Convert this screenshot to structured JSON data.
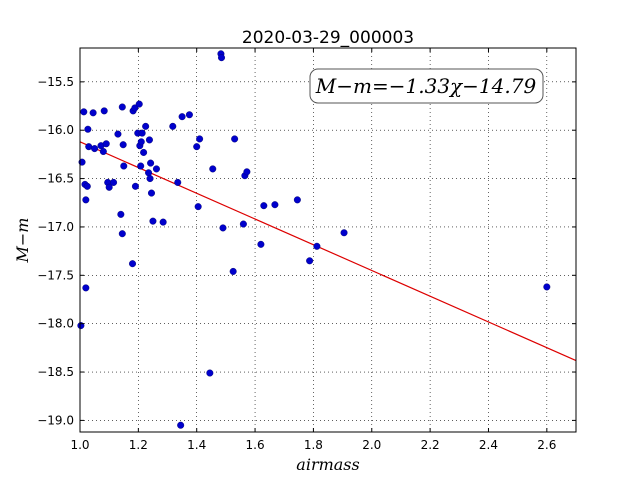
{
  "chart_data": {
    "type": "scatter",
    "title": "2020-03-29_000003",
    "xlabel": "airmass",
    "ylabel": "M−m",
    "annotation": "M−m=−1.33χ−14.79",
    "xlim": [
      1.0,
      2.7
    ],
    "ylim": [
      -19.12,
      -15.15
    ],
    "xticks": [
      1.0,
      1.2,
      1.4,
      1.6,
      1.8,
      2.0,
      2.2,
      2.4,
      2.6
    ],
    "yticks": [
      -15.5,
      -16.0,
      -16.5,
      -17.0,
      -17.5,
      -18.0,
      -18.5,
      -19.0
    ],
    "grid": true,
    "point_color": "#0000cc",
    "line_color": "#dd0000",
    "fit": {
      "slope": -1.33,
      "intercept": -14.79
    },
    "points": [
      {
        "x": 1.003,
        "y": -18.02
      },
      {
        "x": 1.007,
        "y": -16.33
      },
      {
        "x": 1.013,
        "y": -15.81
      },
      {
        "x": 1.017,
        "y": -16.56
      },
      {
        "x": 1.02,
        "y": -17.63
      },
      {
        "x": 1.02,
        "y": -16.72
      },
      {
        "x": 1.025,
        "y": -16.58
      },
      {
        "x": 1.027,
        "y": -15.99
      },
      {
        "x": 1.03,
        "y": -16.17
      },
      {
        "x": 1.045,
        "y": -15.82
      },
      {
        "x": 1.05,
        "y": -16.19
      },
      {
        "x": 1.072,
        "y": -16.16
      },
      {
        "x": 1.08,
        "y": -16.22
      },
      {
        "x": 1.083,
        "y": -15.8
      },
      {
        "x": 1.09,
        "y": -16.14
      },
      {
        "x": 1.095,
        "y": -16.54
      },
      {
        "x": 1.1,
        "y": -16.59
      },
      {
        "x": 1.115,
        "y": -16.54
      },
      {
        "x": 1.13,
        "y": -16.04
      },
      {
        "x": 1.14,
        "y": -16.87
      },
      {
        "x": 1.145,
        "y": -15.76
      },
      {
        "x": 1.145,
        "y": -17.07
      },
      {
        "x": 1.148,
        "y": -16.15
      },
      {
        "x": 1.15,
        "y": -16.37
      },
      {
        "x": 1.18,
        "y": -17.38
      },
      {
        "x": 1.182,
        "y": -15.8
      },
      {
        "x": 1.188,
        "y": -15.77
      },
      {
        "x": 1.19,
        "y": -16.58
      },
      {
        "x": 1.198,
        "y": -16.03
      },
      {
        "x": 1.203,
        "y": -15.73
      },
      {
        "x": 1.205,
        "y": -16.16
      },
      {
        "x": 1.208,
        "y": -16.37
      },
      {
        "x": 1.21,
        "y": -16.12
      },
      {
        "x": 1.213,
        "y": -16.03
      },
      {
        "x": 1.218,
        "y": -16.23
      },
      {
        "x": 1.225,
        "y": -15.96
      },
      {
        "x": 1.235,
        "y": -16.44
      },
      {
        "x": 1.238,
        "y": -16.1
      },
      {
        "x": 1.24,
        "y": -16.5
      },
      {
        "x": 1.242,
        "y": -16.34
      },
      {
        "x": 1.245,
        "y": -16.65
      },
      {
        "x": 1.25,
        "y": -16.94
      },
      {
        "x": 1.262,
        "y": -16.4
      },
      {
        "x": 1.285,
        "y": -16.95
      },
      {
        "x": 1.318,
        "y": -15.96
      },
      {
        "x": 1.335,
        "y": -16.54
      },
      {
        "x": 1.345,
        "y": -19.05
      },
      {
        "x": 1.35,
        "y": -15.86
      },
      {
        "x": 1.375,
        "y": -15.84
      },
      {
        "x": 1.4,
        "y": -16.17
      },
      {
        "x": 1.405,
        "y": -16.79
      },
      {
        "x": 1.41,
        "y": -16.09
      },
      {
        "x": 1.445,
        "y": -18.51
      },
      {
        "x": 1.455,
        "y": -16.4
      },
      {
        "x": 1.483,
        "y": -15.21
      },
      {
        "x": 1.485,
        "y": -15.25
      },
      {
        "x": 1.49,
        "y": -17.01
      },
      {
        "x": 1.525,
        "y": -17.46
      },
      {
        "x": 1.53,
        "y": -16.09
      },
      {
        "x": 1.56,
        "y": -16.97
      },
      {
        "x": 1.565,
        "y": -16.47
      },
      {
        "x": 1.572,
        "y": -16.43
      },
      {
        "x": 1.62,
        "y": -17.18
      },
      {
        "x": 1.63,
        "y": -16.78
      },
      {
        "x": 1.668,
        "y": -16.77
      },
      {
        "x": 1.745,
        "y": -16.72
      },
      {
        "x": 1.787,
        "y": -17.35
      },
      {
        "x": 1.812,
        "y": -17.2
      },
      {
        "x": 1.905,
        "y": -17.06
      },
      {
        "x": 2.6,
        "y": -17.62
      }
    ]
  }
}
